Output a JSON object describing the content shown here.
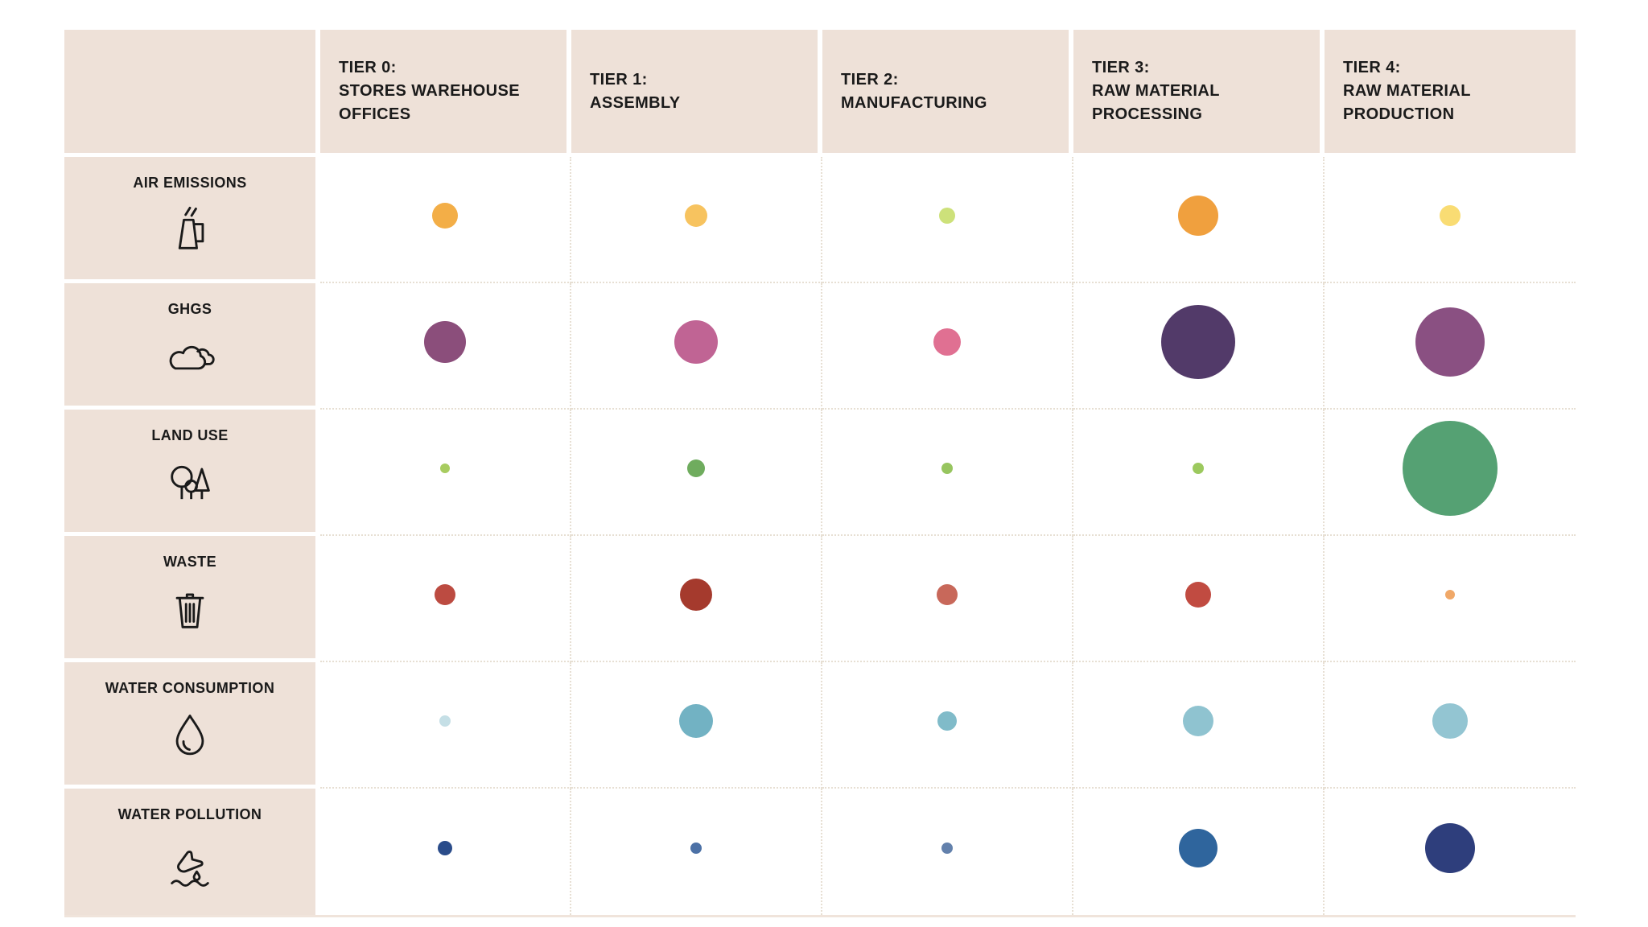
{
  "style": {
    "header_bg": "#EEE1D8",
    "grid_dot_color": "#E7DFD3",
    "text_color": "#1A1A1A",
    "background": "#FFFFFF",
    "bottom_rule_color": "#F0E4DB"
  },
  "chart_data": {
    "type": "scatter",
    "subtype": "bubble_matrix",
    "size_encoding": "bubble radius in px as rendered; larger bubble = greater environmental impact; no numeric scale shown in image",
    "grid": "dotted separators between data cells",
    "legend": null,
    "columns": [
      {
        "id": "tier-0",
        "label": "TIER 0:\nSTORES WAREHOUSE\nOFFICES"
      },
      {
        "id": "tier-1",
        "label": "TIER 1:\nASSEMBLY"
      },
      {
        "id": "tier-2",
        "label": "TIER 2:\nMANUFACTURING"
      },
      {
        "id": "tier-3",
        "label": "TIER 3:\nRAW MATERIAL\nPROCESSING"
      },
      {
        "id": "tier-4",
        "label": "TIER 4:\nRAW MATERIAL\nPRODUCTION"
      }
    ],
    "rows": [
      {
        "id": "air-emissions",
        "label": "AIR EMISSIONS",
        "icon": "air-emissions-icon",
        "bubbles": [
          {
            "radius_px": 16,
            "color": "#F3AE47"
          },
          {
            "radius_px": 14,
            "color": "#F7C35F"
          },
          {
            "radius_px": 10,
            "color": "#CDE17A"
          },
          {
            "radius_px": 25,
            "color": "#F0A03E"
          },
          {
            "radius_px": 13,
            "color": "#F9DC73"
          }
        ]
      },
      {
        "id": "ghgs",
        "label": "GHGS",
        "icon": "ghgs-cloud-icon",
        "bubbles": [
          {
            "radius_px": 26,
            "color": "#8B4E7B"
          },
          {
            "radius_px": 27,
            "color": "#C06494"
          },
          {
            "radius_px": 17,
            "color": "#E07092"
          },
          {
            "radius_px": 46,
            "color": "#523A69"
          },
          {
            "radius_px": 43,
            "color": "#8A5082"
          }
        ]
      },
      {
        "id": "land-use",
        "label": "LAND USE",
        "icon": "land-use-trees-icon",
        "bubbles": [
          {
            "radius_px": 6,
            "color": "#A8CC60"
          },
          {
            "radius_px": 11,
            "color": "#6FAC5E"
          },
          {
            "radius_px": 7,
            "color": "#97C55F"
          },
          {
            "radius_px": 7,
            "color": "#9CC95E"
          },
          {
            "radius_px": 59,
            "color": "#55A173"
          }
        ]
      },
      {
        "id": "waste",
        "label": "WASTE",
        "icon": "waste-trash-can-icon",
        "bubbles": [
          {
            "radius_px": 13,
            "color": "#BC4B41"
          },
          {
            "radius_px": 20,
            "color": "#A53A2D"
          },
          {
            "radius_px": 13,
            "color": "#C8685A"
          },
          {
            "radius_px": 16,
            "color": "#C14B41"
          },
          {
            "radius_px": 6,
            "color": "#F0A868"
          }
        ]
      },
      {
        "id": "water-consumption",
        "label": "WATER CONSUMPTION",
        "icon": "water-consumption-droplet-icon",
        "bubbles": [
          {
            "radius_px": 7,
            "color": "#C5DFE6"
          },
          {
            "radius_px": 21,
            "color": "#72B2C3"
          },
          {
            "radius_px": 12,
            "color": "#80BBC9"
          },
          {
            "radius_px": 19,
            "color": "#8FC3D0"
          },
          {
            "radius_px": 22,
            "color": "#93C5D2"
          }
        ]
      },
      {
        "id": "water-pollution",
        "label": "WATER POLLUTION",
        "icon": "water-pollution-flask-icon",
        "bubbles": [
          {
            "radius_px": 9,
            "color": "#2A4C8A"
          },
          {
            "radius_px": 7,
            "color": "#4C71A6"
          },
          {
            "radius_px": 7,
            "color": "#6381AC"
          },
          {
            "radius_px": 24,
            "color": "#2F659D"
          },
          {
            "radius_px": 31,
            "color": "#2E3E7C"
          }
        ]
      }
    ]
  }
}
